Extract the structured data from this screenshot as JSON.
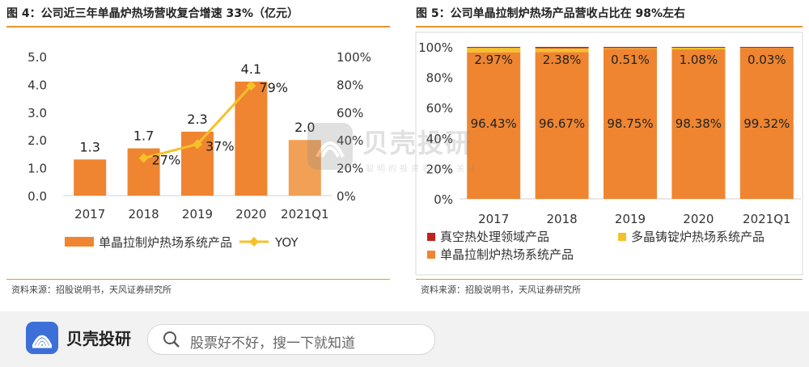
{
  "left_panel": {
    "title": "图 4：公司近三年单晶炉热场营收复合增速 33%（亿元）",
    "source": "资料来源：招股说明书，天风证券研究所"
  },
  "right_panel": {
    "title": "图 5：公司单晶拉制炉热场产品营收占比在 98%左右",
    "source": "资料来源：招股说明书，天风证券研究所"
  },
  "watermark": {
    "title": "贝壳投研",
    "subtitle": "聪明的投资者都在关注"
  },
  "footer": {
    "brand": "贝壳投研",
    "search_placeholder": "股票好不好，搜一下就知道"
  },
  "colors": {
    "orange": "#ef8530",
    "gold": "#f5c12a",
    "red": "#c0231b",
    "rule": "#e8962e",
    "logo": "#3d6fd9"
  },
  "chart_data": [
    {
      "type": "bar",
      "categories": [
        "2017",
        "2018",
        "2019",
        "2020",
        "2021Q1"
      ],
      "series": [
        {
          "name": "单晶拉制炉热场系统产品",
          "kind": "bar",
          "axis": "left",
          "values": [
            1.3,
            1.7,
            2.3,
            4.1,
            2.0
          ],
          "labels": [
            "1.3",
            "1.7",
            "2.3",
            "4.1",
            "2.0"
          ]
        },
        {
          "name": "YOY",
          "kind": "line",
          "axis": "right",
          "values": [
            null,
            27,
            37,
            79,
            null
          ],
          "labels": [
            "",
            "27%",
            "37%",
            "79%",
            ""
          ]
        }
      ],
      "ylim": [
        0,
        5
      ],
      "yticks": [
        "0.0",
        "1.0",
        "2.0",
        "3.0",
        "4.0",
        "5.0"
      ],
      "y2lim": [
        0,
        100
      ],
      "y2ticks": [
        "0%",
        "20%",
        "40%",
        "60%",
        "80%",
        "100%"
      ],
      "legend": "bottom"
    },
    {
      "type": "bar",
      "stacked": true,
      "categories": [
        "2017",
        "2018",
        "2019",
        "2020",
        "2021Q1"
      ],
      "series": [
        {
          "name": "真空热处理领域产品",
          "color": "#c0231b",
          "values": [
            0.6,
            0.95,
            0.74,
            0.54,
            0.65
          ]
        },
        {
          "name": "多晶铸锭炉热场系统产品",
          "color": "#f5c12a",
          "values": [
            2.97,
            2.38,
            0.51,
            1.08,
            0.03
          ],
          "labels": [
            "2.97%",
            "2.38%",
            "0.51%",
            "1.08%",
            "0.03%"
          ]
        },
        {
          "name": "单晶拉制炉热场系统产品",
          "color": "#ef8530",
          "values": [
            96.43,
            96.67,
            98.75,
            98.38,
            99.32
          ],
          "labels": [
            "96.43%",
            "96.67%",
            "98.75%",
            "98.38%",
            "99.32%"
          ]
        }
      ],
      "ylim": [
        0,
        100
      ],
      "yticks": [
        "0%",
        "20%",
        "40%",
        "60%",
        "80%",
        "100%"
      ],
      "legend": "bottom"
    }
  ]
}
